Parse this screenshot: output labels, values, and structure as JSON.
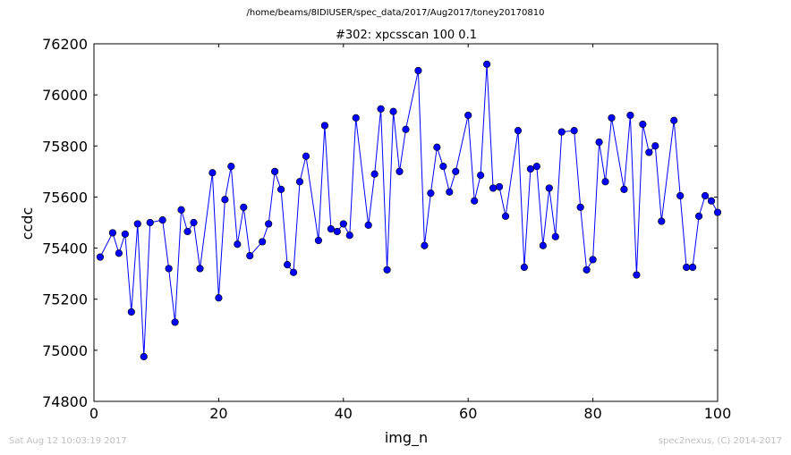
{
  "page": {
    "title": "/home/beams/8IDIUSER/spec_data/2017/Aug2017/toney20170810",
    "footer_left": "Sat Aug 12 10:03:19 2017",
    "footer_right": "spec2nexus, (C) 2014-2017"
  },
  "chart_data": {
    "type": "line",
    "title": "#302: xpcsscan 100 0.1",
    "xlabel": "img_n",
    "ylabel": "ccdc",
    "xlim": [
      0,
      100
    ],
    "ylim": [
      74800,
      76200
    ],
    "xticks": [
      0,
      20,
      40,
      60,
      80,
      100
    ],
    "yticks": [
      74800,
      75000,
      75200,
      75400,
      75600,
      75800,
      76000,
      76200
    ],
    "grid": false,
    "line_color": "#0000ff",
    "marker_color": "#0000ff",
    "series": [
      {
        "x": [
          1,
          3,
          4,
          5,
          6,
          7,
          8,
          9,
          11,
          12,
          13,
          14,
          15,
          16,
          17,
          19,
          20,
          21,
          22,
          23,
          24,
          25,
          27,
          28,
          29,
          30,
          31,
          32,
          33,
          34,
          36,
          37,
          38,
          39,
          40,
          41,
          42,
          44,
          45,
          46,
          47,
          48,
          49,
          50,
          52,
          53,
          54,
          55,
          56,
          57,
          58,
          60,
          61,
          62,
          63,
          64,
          65,
          66,
          68,
          69,
          70,
          71,
          72,
          73,
          74,
          75,
          77,
          78,
          79,
          80,
          81,
          82,
          83,
          85,
          86,
          87,
          88,
          89,
          90,
          91,
          93,
          94,
          95,
          96,
          97,
          98,
          99,
          100
        ],
        "y": [
          75365,
          75460,
          75380,
          75455,
          75150,
          75495,
          74975,
          75500,
          75510,
          75320,
          75110,
          75550,
          75465,
          75500,
          75320,
          75695,
          75205,
          75590,
          75720,
          75415,
          75560,
          75370,
          75425,
          75495,
          75700,
          75630,
          75335,
          75305,
          75660,
          75760,
          75430,
          75880,
          75475,
          75465,
          75495,
          75450,
          75910,
          75490,
          75690,
          75945,
          75315,
          75935,
          75700,
          75865,
          76095,
          75410,
          75615,
          75795,
          75720,
          75620,
          75700,
          75920,
          75585,
          75685,
          76120,
          75635,
          75640,
          75525,
          75860,
          75325,
          75710,
          75720,
          75410,
          75635,
          75445,
          75855,
          75860,
          75560,
          75315,
          75355,
          75815,
          75660,
          75910,
          75630,
          75920,
          75295,
          75885,
          75775,
          75800,
          75505,
          75900,
          75605,
          75325,
          75325,
          75525,
          75605,
          75585,
          75540
        ]
      }
    ]
  }
}
